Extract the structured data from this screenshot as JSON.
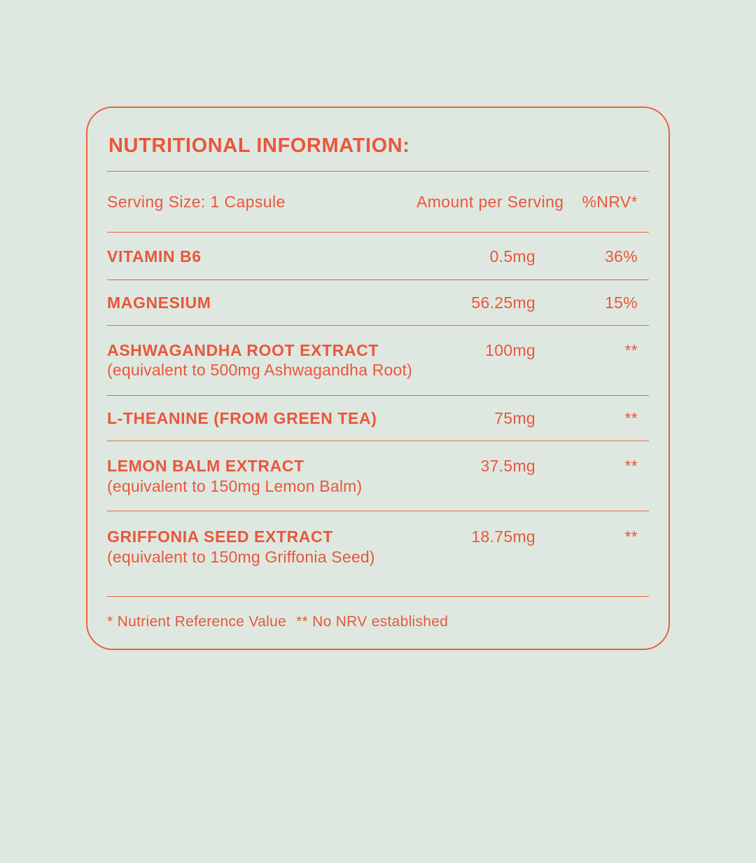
{
  "colors": {
    "accent_text": "#e8573b",
    "border_line": "#e8643f",
    "background": "#dfe8e0"
  },
  "label": {
    "title": "NUTRITIONAL INFORMATION:",
    "header": {
      "serving_size": "Serving Size: 1 Capsule",
      "amount_col": "Amount per Serving",
      "nrv_col": "%NRV*"
    },
    "rows": [
      {
        "name": "VITAMIN B6",
        "sub": "",
        "amount": "0.5mg",
        "nrv": "36%"
      },
      {
        "name": "MAGNESIUM",
        "sub": "",
        "amount": "56.25mg",
        "nrv": "15%"
      },
      {
        "name": "ASHWAGANDHA ROOT EXTRACT",
        "sub": "(equivalent to 500mg Ashwagandha Root)",
        "amount": "100mg",
        "nrv": "**"
      },
      {
        "name": "L-THEANINE (FROM GREEN TEA)",
        "sub": "",
        "amount": "75mg",
        "nrv": "**"
      },
      {
        "name": "LEMON BALM EXTRACT",
        "sub": "(equivalent to 150mg Lemon Balm)",
        "amount": "37.5mg",
        "nrv": "**"
      },
      {
        "name": "GRIFFONIA SEED EXTRACT",
        "sub": "(equivalent to 150mg Griffonia Seed)",
        "amount": "18.75mg",
        "nrv": "**"
      }
    ],
    "footnotes": {
      "nrv_note": "* Nutrient Reference Value",
      "no_nrv_note": "** No NRV established"
    }
  }
}
